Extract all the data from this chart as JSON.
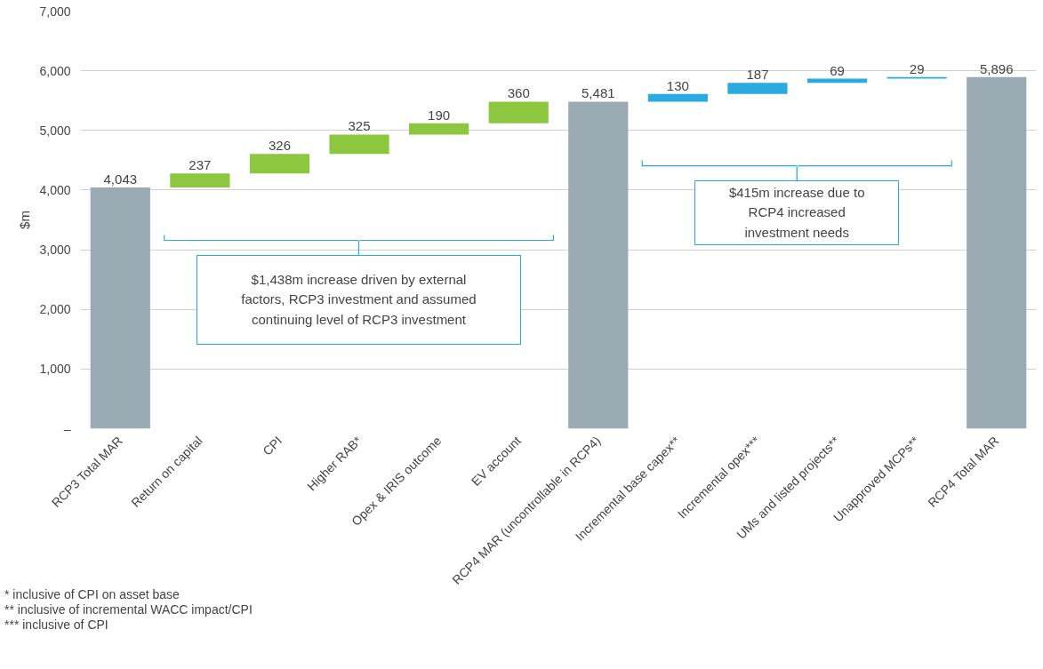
{
  "chart_data": {
    "type": "bar",
    "categories": [
      "RCP3 Total MAR",
      "Return on capital",
      "CPI",
      "Higher RAB*",
      "Opex & IRIS outcome",
      "EV account",
      "RCP4 MAR (uncontrollable in RCP4)",
      "Incremental base capex**",
      "Incremental opex***",
      "UMs and listed projects**",
      "Unapproved MCPs**",
      "RCP4 Total MAR"
    ],
    "values": [
      4043,
      237,
      326,
      325,
      190,
      360,
      5481,
      130,
      187,
      69,
      29,
      5896
    ],
    "base": [
      0,
      4043,
      4280,
      4606,
      4931,
      5121,
      0,
      5481,
      5611,
      5798,
      5867,
      0
    ],
    "colors": [
      "#9aaab2",
      "#8dc63f",
      "#8dc63f",
      "#8dc63f",
      "#8dc63f",
      "#8dc63f",
      "#9aaab2",
      "#29abe2",
      "#29abe2",
      "#29abe2",
      "#29abe2",
      "#9aaab2"
    ],
    "value_labels": [
      "4,043",
      "237",
      "326",
      "325",
      "190",
      "360",
      "5,481",
      "130",
      "187",
      "69",
      "29",
      "5,896"
    ],
    "ylabel": "$m",
    "ylim": [
      0,
      7000
    ],
    "yticks": [
      {
        "value": 0,
        "label": "–"
      },
      {
        "value": 1000,
        "label": "1,000"
      },
      {
        "value": 2000,
        "label": "2,000"
      },
      {
        "value": 3000,
        "label": "3,000"
      },
      {
        "value": 4000,
        "label": "4,000"
      },
      {
        "value": 5000,
        "label": "5,000"
      },
      {
        "value": 6000,
        "label": "6,000"
      },
      {
        "value": 7000,
        "label": "7,000"
      }
    ],
    "grid": "y",
    "annotations": [
      "$1,438m increase driven by external factors, RCP3 investment and assumed continuing level of RCP3 investment",
      "$415m increase due to RCP4 increased investment needs",
      "* inclusive of CPI on asset base",
      "** inclusive of incremental WACC impact/CPI",
      "*** inclusive of CPI"
    ]
  }
}
